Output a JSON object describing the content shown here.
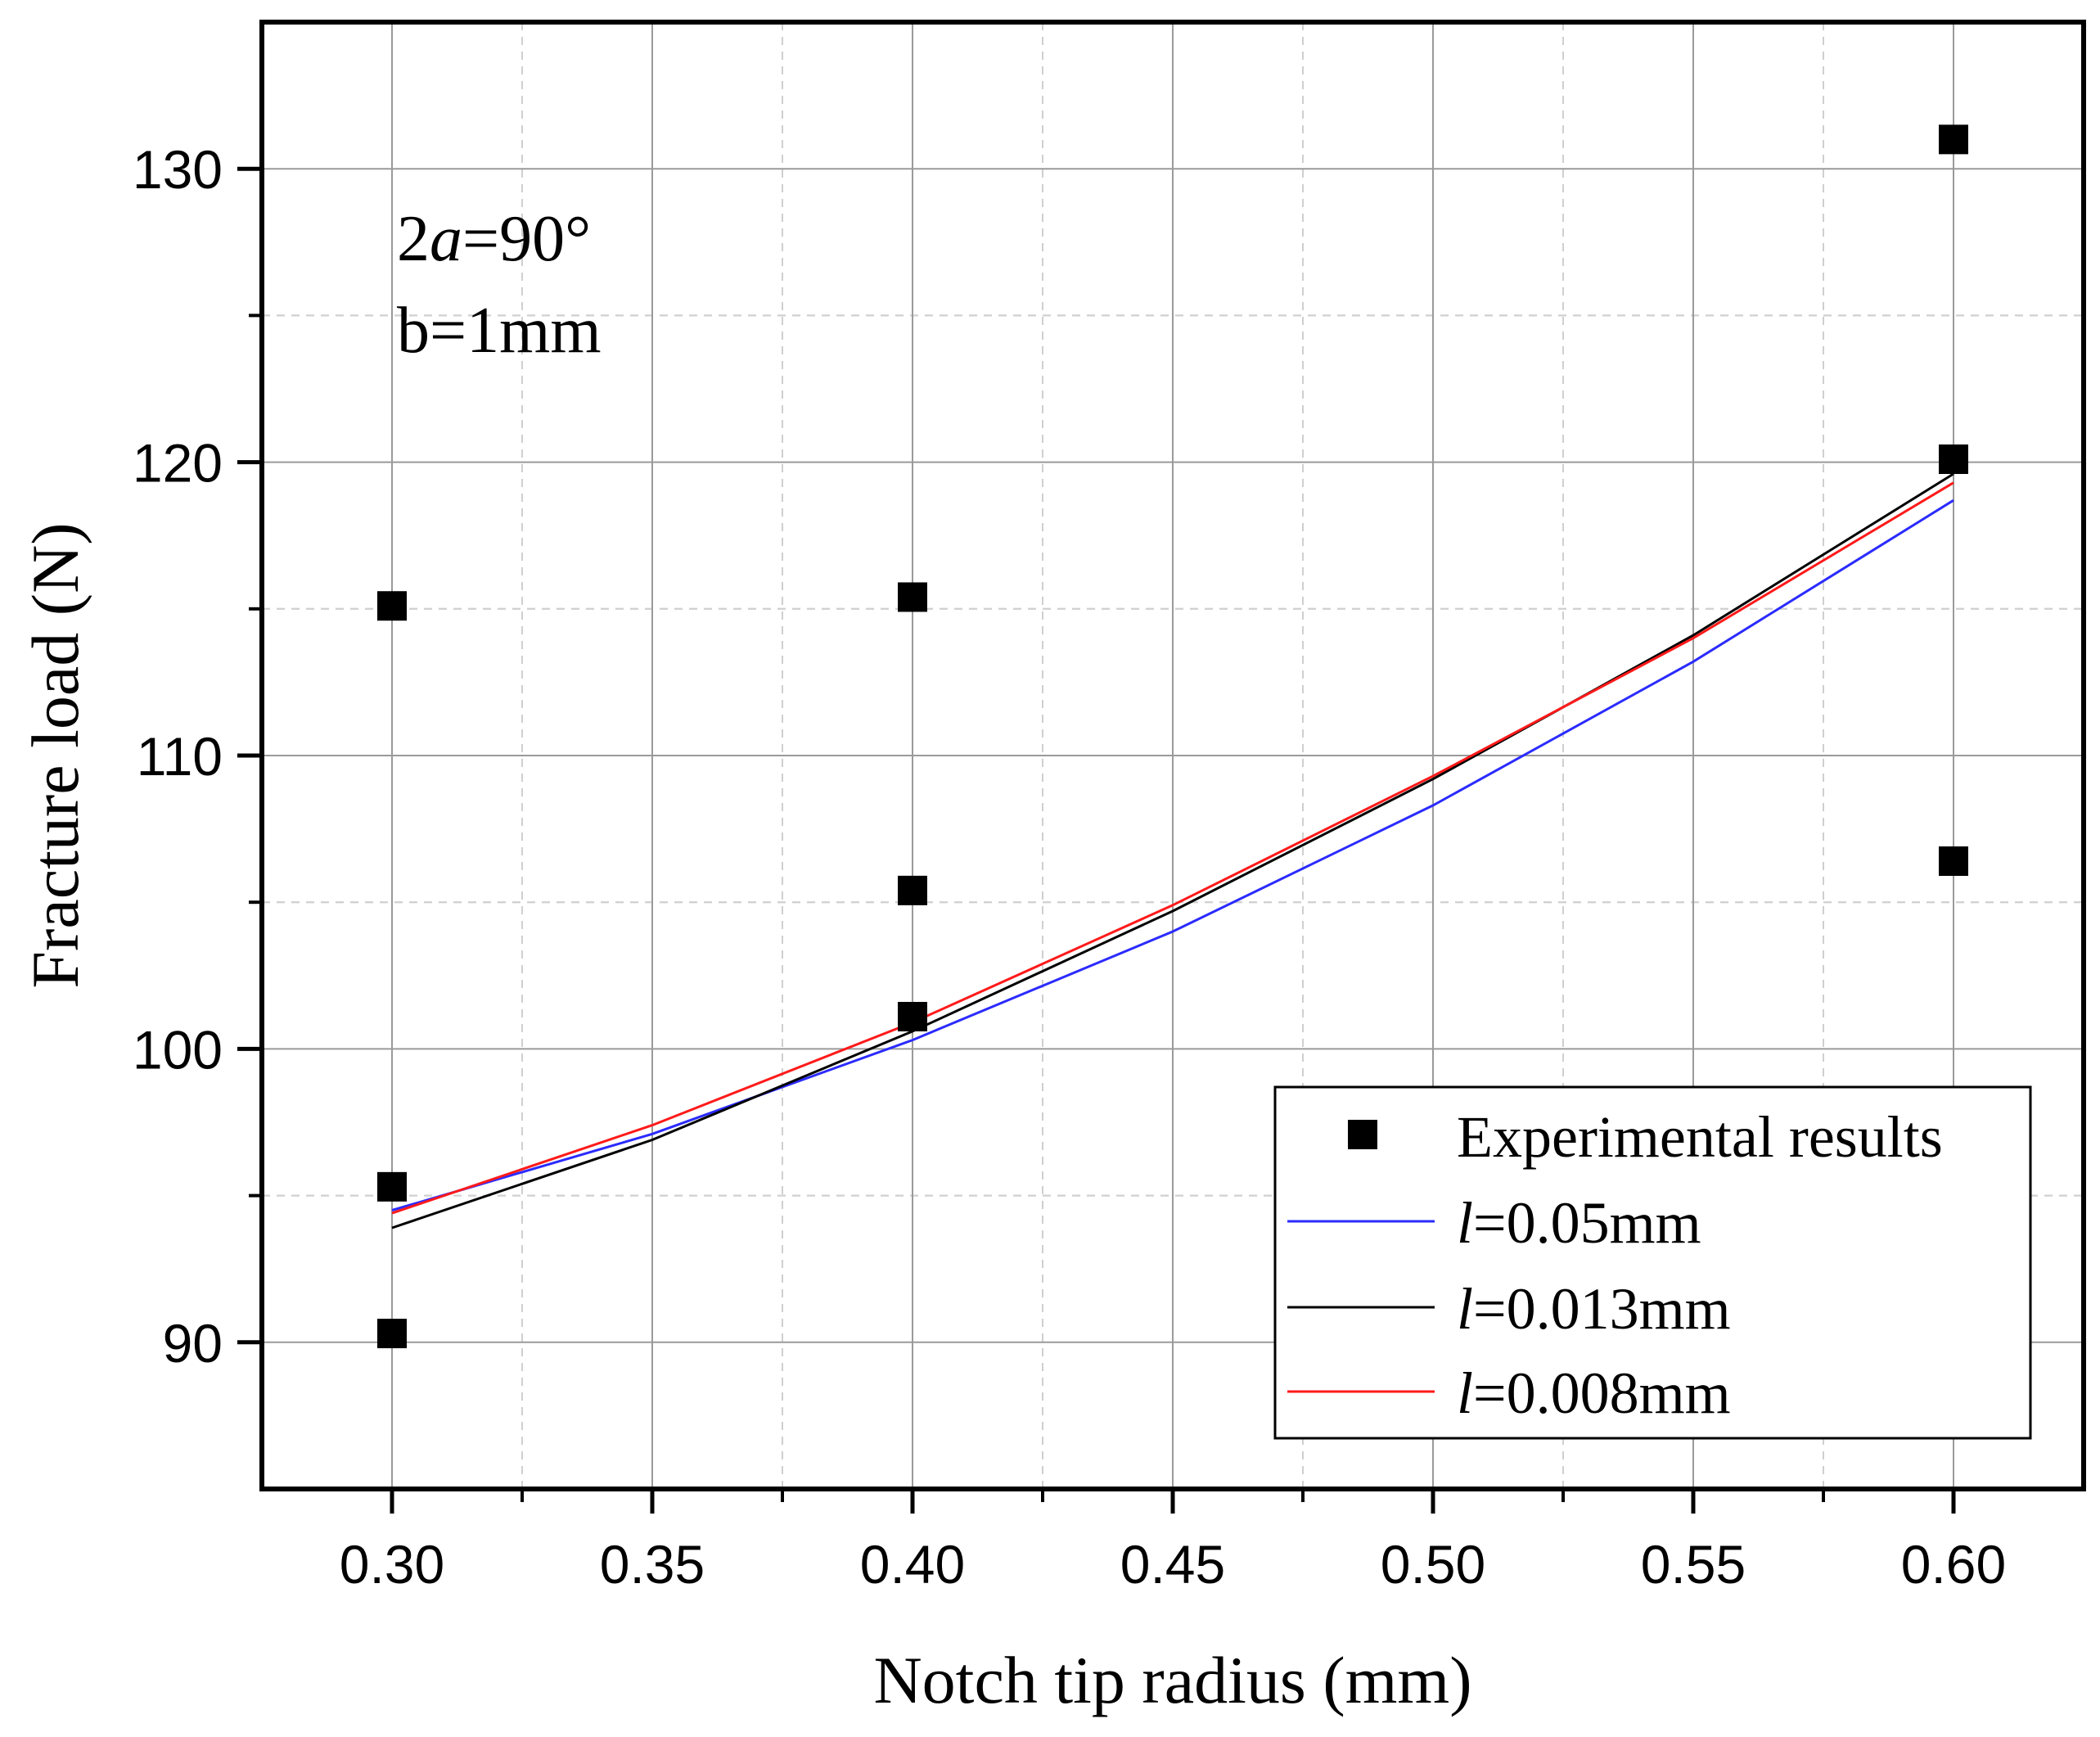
{
  "chart_data": {
    "type": "scatter",
    "xlabel": "Notch tip radius (mm)",
    "ylabel": "Fracture load (N)",
    "xlim": [
      0.275,
      0.625
    ],
    "ylim": [
      85,
      135
    ],
    "xticks": [
      0.3,
      0.35,
      0.4,
      0.45,
      0.5,
      0.55,
      0.6
    ],
    "xtick_labels": [
      "0.30",
      "0.35",
      "0.40",
      "0.45",
      "0.50",
      "0.55",
      "0.60"
    ],
    "yticks": [
      90,
      100,
      110,
      120,
      130
    ],
    "ytick_labels": [
      "90",
      "100",
      "110",
      "120",
      "130"
    ],
    "grid": true,
    "legend_position": "bottom-right",
    "annotations": {
      "angle": {
        "prefix": "2",
        "symbol": "a",
        "suffix": "=90°"
      },
      "thickness": "b=1mm"
    },
    "points": {
      "name": "Experimental results",
      "x": [
        0.3,
        0.3,
        0.3,
        0.4,
        0.4,
        0.4,
        0.6,
        0.6,
        0.6
      ],
      "y": [
        115.1,
        95.3,
        90.3,
        115.4,
        105.4,
        101.1,
        131.0,
        120.1,
        106.4
      ]
    },
    "series": [
      {
        "symbol": "l",
        "value": "=0.05mm",
        "color": "#2b2bff",
        "x": [
          0.3,
          0.35,
          0.4,
          0.45,
          0.5,
          0.55,
          0.6
        ],
        "y": [
          94.5,
          97.1,
          100.3,
          104.0,
          108.3,
          113.2,
          118.7
        ]
      },
      {
        "symbol": "l",
        "value": "=0.013mm",
        "color": "#000000",
        "x": [
          0.3,
          0.35,
          0.4,
          0.45,
          0.5,
          0.55,
          0.6
        ],
        "y": [
          93.9,
          96.9,
          100.6,
          104.7,
          109.2,
          114.1,
          119.6
        ]
      },
      {
        "symbol": "l",
        "value": "=0.008mm",
        "color": "#ff1a1a",
        "x": [
          0.3,
          0.35,
          0.4,
          0.45,
          0.5,
          0.55,
          0.6
        ],
        "y": [
          94.4,
          97.4,
          100.9,
          104.9,
          109.3,
          114.0,
          119.3
        ]
      }
    ],
    "colors": {
      "grid_major": "#9a9a9a",
      "grid_minor": "#cfcfcf",
      "marker": "#000000"
    }
  }
}
